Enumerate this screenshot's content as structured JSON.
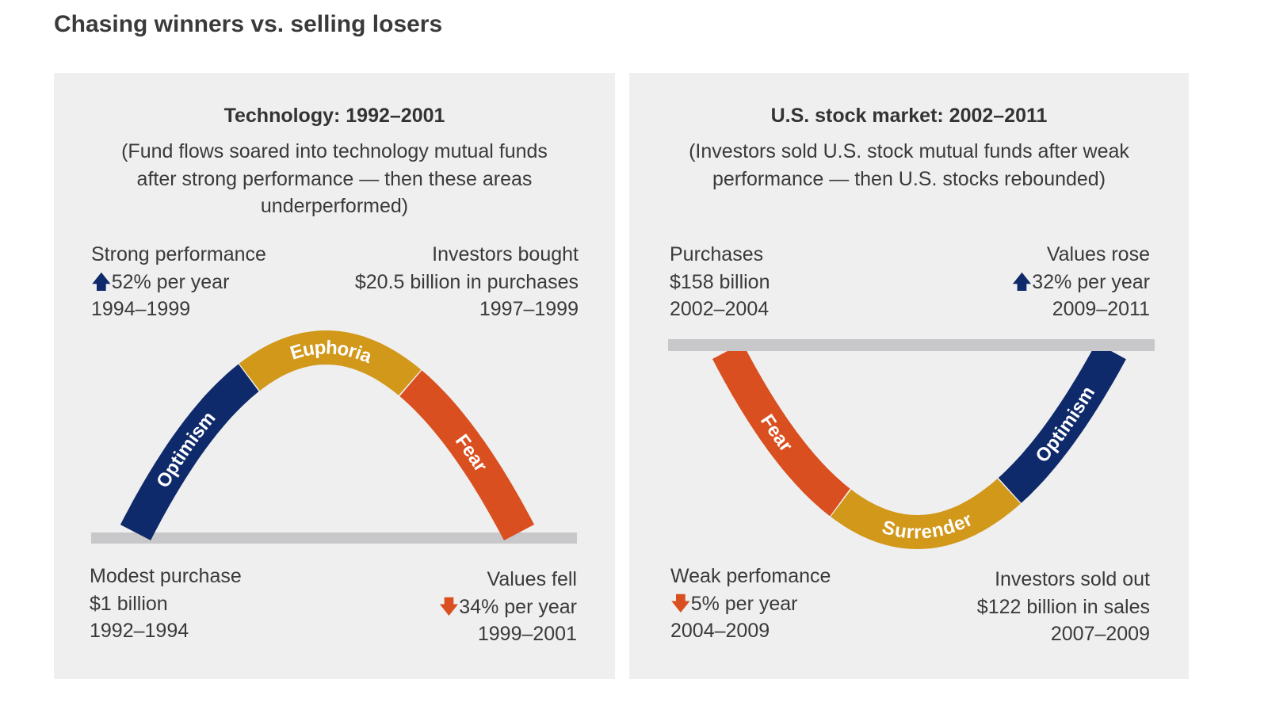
{
  "title": "Chasing winners vs. selling losers",
  "colors": {
    "optimism": "#0f2a6b",
    "euphoria": "#d1981a",
    "surrender": "#d1981a",
    "fear": "#d94f1f",
    "baseline": "#c8c8ca",
    "panel": "#efefef"
  },
  "left": {
    "title": "Technology: 1992–2001",
    "subtitle": "(Fund flows soared into technology mutual funds after strong performance — then these areas underperformed)",
    "top_left": {
      "line1": "Strong performance",
      "arrow": "up-arrow-icon",
      "line2": "52% per year",
      "line3": "1994–1999"
    },
    "top_right": {
      "line1": "Investors bought",
      "line2": "$20.5 billion in purchases",
      "line3": "1997–1999"
    },
    "bottom_left": {
      "line1": "Modest purchase",
      "line2": "$1 billion",
      "line3": "1992–1994"
    },
    "bottom_right": {
      "line1": "Values fell",
      "arrow": "down-arrow-icon",
      "line2": "34% per year",
      "line3": "1999–2001"
    },
    "segments": [
      "Optimism",
      "Euphoria",
      "Fear"
    ]
  },
  "right": {
    "title": "U.S. stock market: 2002–2011",
    "subtitle": "(Investors sold U.S. stock mutual funds after weak performance — then U.S. stocks rebounded)",
    "top_left": {
      "line1": "Purchases",
      "line2": "$158 billion",
      "line3": "2002–2004"
    },
    "top_right": {
      "line1": "Values rose",
      "arrow": "up-arrow-icon",
      "line2": "32% per year",
      "line3": "2009–2011"
    },
    "bottom_left": {
      "line1": "Weak perfomance",
      "arrow": "down-arrow-icon",
      "line2": "5% per year",
      "line3": "2004–2009"
    },
    "bottom_right": {
      "line1": "Investors sold out",
      "line2": "$122 billion in sales",
      "line3": "2007–2009"
    },
    "segments": [
      "Fear",
      "Surrender",
      "Optimism"
    ]
  }
}
